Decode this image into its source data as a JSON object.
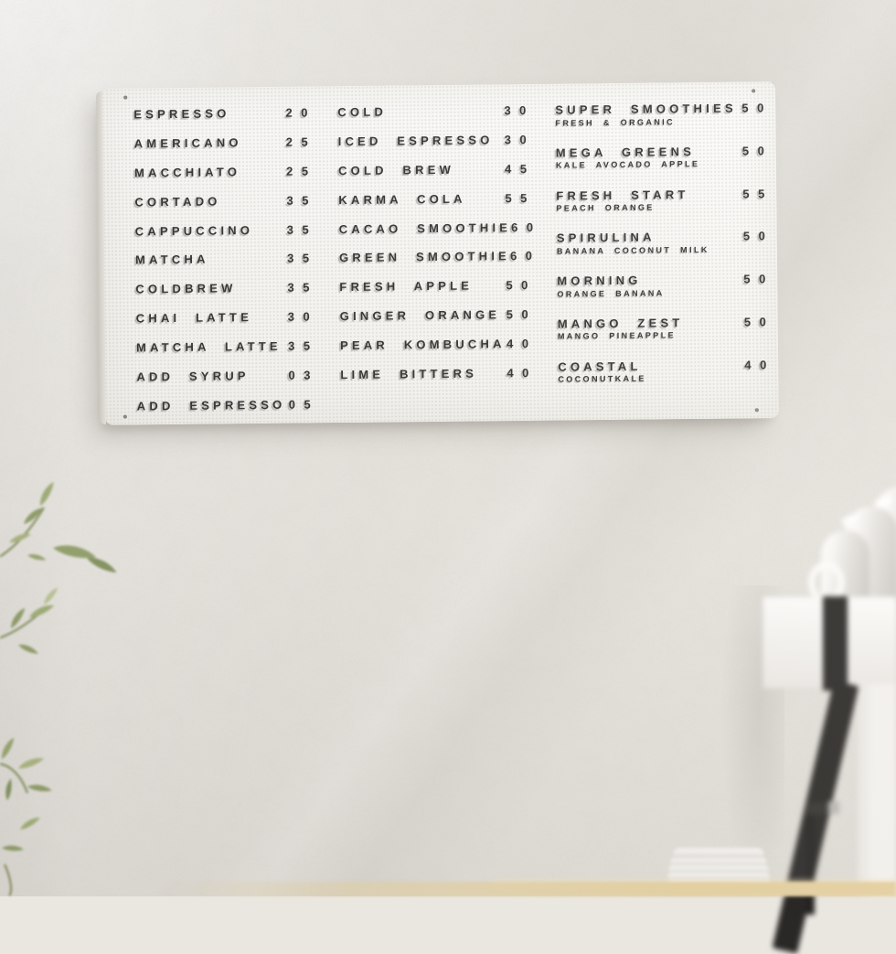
{
  "board": {
    "columns": [
      {
        "name": "coffee",
        "items": [
          {
            "label": "ESPRESSO",
            "price": "20"
          },
          {
            "label": "AMERICANO",
            "price": "25"
          },
          {
            "label": "MACCHIATO",
            "price": "25"
          },
          {
            "label": "CORTADO",
            "price": "35"
          },
          {
            "label": "CAPPUCCINO",
            "price": "35"
          },
          {
            "label": "MATCHA",
            "price": "35"
          },
          {
            "label": "COLDBREW",
            "price": "35"
          },
          {
            "label": "CHAI LATTE",
            "price": "30"
          },
          {
            "label": "MATCHA LATTE",
            "price": "35"
          },
          {
            "label": "ADD SYRUP",
            "price": "03"
          },
          {
            "label": "ADD ESPRESSO",
            "price": "05"
          }
        ]
      },
      {
        "name": "cold-drinks",
        "items": [
          {
            "label": "COLD",
            "price": "30"
          },
          {
            "label": "ICED ESPRESSO",
            "price": "30"
          },
          {
            "label": "COLD BREW",
            "price": "45"
          },
          {
            "label": "KARMA COLA",
            "price": "55"
          },
          {
            "label": "CACAO SMOOTHIE",
            "price": "60"
          },
          {
            "label": "GREEN SMOOTHIE",
            "price": "60"
          },
          {
            "label": "FRESH APPLE",
            "price": "50"
          },
          {
            "label": "GINGER ORANGE",
            "price": "50"
          },
          {
            "label": "PEAR KOMBUCHA",
            "price": "40"
          },
          {
            "label": "LIME BITTERS",
            "price": "40"
          }
        ]
      },
      {
        "name": "smoothies",
        "items": [
          {
            "label": "SUPER SMOOTHIES",
            "price": "50",
            "subtitle": "FRESH & ORGANIC"
          },
          {
            "label": "MEGA GREENS",
            "price": "50",
            "subtitle": "KALE AVOCADO APPLE"
          },
          {
            "label": "FRESH START",
            "price": "55",
            "subtitle": "PEACH ORANGE"
          },
          {
            "label": "SPIRULINA",
            "price": "50",
            "subtitle": "BANANA COCONUT MILK"
          },
          {
            "label": "MORNING",
            "price": "50",
            "subtitle": "ORANGE BANANA"
          },
          {
            "label": "MANGO ZEST",
            "price": "50",
            "subtitle": "MANGO PINEAPPLE"
          },
          {
            "label": "COASTAL",
            "price": "40",
            "subtitle": "COCONUTKALE"
          }
        ]
      }
    ]
  },
  "colors": {
    "wall": "#eae7e1",
    "board": "#faf9f6",
    "letters": "#2e2d2e",
    "leaf": "#8e9e66",
    "counter": "#e4cf9e",
    "machine_black": "#2b2927"
  }
}
